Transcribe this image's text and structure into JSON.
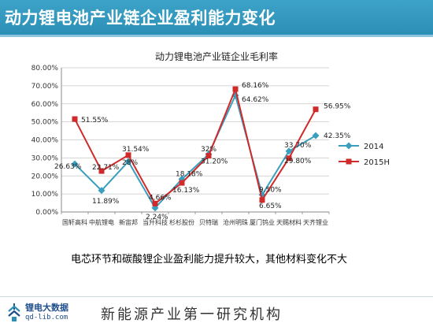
{
  "banner": {
    "title": "动力锂电池产业链企业盈利能力变化"
  },
  "chart_data": {
    "type": "line",
    "title": "动力锂电池产业链企业毛利率",
    "categories": [
      "国轩高科",
      "中航锂电",
      "新宙邦",
      "当升科技",
      "杉杉股份",
      "贝特瑞",
      "沧州明珠",
      "厦门钨业",
      "天赐材料",
      "天齐锂业"
    ],
    "series": [
      {
        "name": "2014",
        "color": "#3a9fbf",
        "marker": "diamond",
        "values": [
          26.63,
          11.89,
          28.0,
          2.24,
          18.18,
          32.0,
          64.62,
          9.5,
          33.7,
          42.35
        ],
        "labels": [
          "26.63%",
          "11.89%",
          "28%",
          "2.24%",
          "18.18%",
          "32%",
          "64.62%",
          "9.50%",
          "33.70%",
          "42.35%"
        ]
      },
      {
        "name": "2015H",
        "color": "#d02a2a",
        "marker": "square",
        "values": [
          51.55,
          22.71,
          31.54,
          4.66,
          16.13,
          31.2,
          68.16,
          6.65,
          29.8,
          56.95
        ],
        "labels": [
          "51.55%",
          "22.71%",
          "31.54%",
          "4.66%",
          "16.13%",
          "31.20%",
          "68.16%",
          "6.65%",
          "29.80%",
          "56.95%"
        ]
      }
    ],
    "ylim": [
      0,
      80
    ],
    "yticks": [
      "0.00%",
      "10.00%",
      "20.00%",
      "30.00%",
      "40.00%",
      "50.00%",
      "60.00%",
      "70.00%",
      "80.00%"
    ],
    "grid": true,
    "legend": "right"
  },
  "caption": "电芯环节和碳酸锂企业盈利能力提升较大，其他材料变化不大",
  "footer": {
    "brand_name": "锂电大数据",
    "brand_url": "qd-lib.com",
    "slogan": "新能源产业第一研究机构"
  }
}
